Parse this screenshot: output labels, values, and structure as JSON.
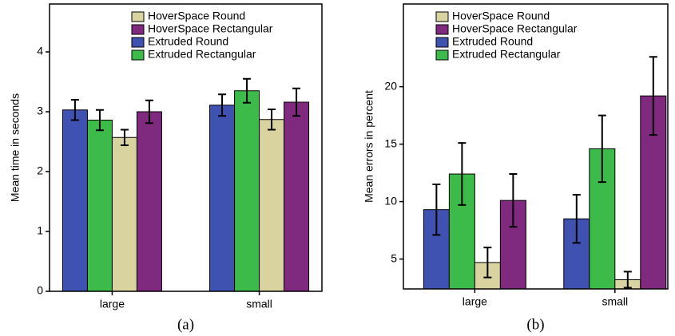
{
  "chart_data": [
    {
      "type": "bar",
      "caption": "(a)",
      "y_label": "Mean time in seconds",
      "categories": [
        "large",
        "small"
      ],
      "series": [
        {
          "name": "Extruded Round",
          "color": "#3f51b1",
          "values": [
            3.03,
            3.11
          ],
          "errors": [
            0.17,
            0.18
          ]
        },
        {
          "name": "Extruded Rectangular",
          "color": "#3cba4a",
          "values": [
            2.86,
            3.35
          ],
          "errors": [
            0.17,
            0.2
          ]
        },
        {
          "name": "HoverSpace Round",
          "color": "#d9d3a0",
          "values": [
            2.57,
            2.87
          ],
          "errors": [
            0.13,
            0.17
          ]
        },
        {
          "name": "HoverSpace Rectangular",
          "color": "#7f2a7f",
          "values": [
            3.0,
            3.16
          ],
          "errors": [
            0.19,
            0.23
          ]
        }
      ],
      "legend_order": [
        2,
        3,
        0,
        1
      ],
      "legend": "top",
      "ylim": [
        0,
        4.8
      ],
      "yticks": [
        0,
        1,
        2,
        3,
        4
      ]
    },
    {
      "type": "bar",
      "caption": "(b)",
      "y_label": "Mean errors in percent",
      "categories": [
        "large",
        "small"
      ],
      "series": [
        {
          "name": "Extruded Round",
          "color": "#3f51b1",
          "values": [
            9.3,
            8.5
          ],
          "errors": [
            2.2,
            2.1
          ]
        },
        {
          "name": "Extruded Rectangular",
          "color": "#3cba4a",
          "values": [
            12.4,
            14.6
          ],
          "errors": [
            2.7,
            2.9
          ]
        },
        {
          "name": "HoverSpace Round",
          "color": "#d9d3a0",
          "values": [
            4.7,
            3.2
          ],
          "errors": [
            1.3,
            0.7
          ]
        },
        {
          "name": "HoverSpace Rectangular",
          "color": "#7f2a7f",
          "values": [
            10.1,
            19.2
          ],
          "errors": [
            2.3,
            3.4
          ]
        }
      ],
      "legend_order": [
        2,
        3,
        0,
        1
      ],
      "legend": "top",
      "ylim": [
        2.4,
        27.2
      ],
      "yticks": [
        5,
        10,
        15,
        20
      ]
    }
  ]
}
